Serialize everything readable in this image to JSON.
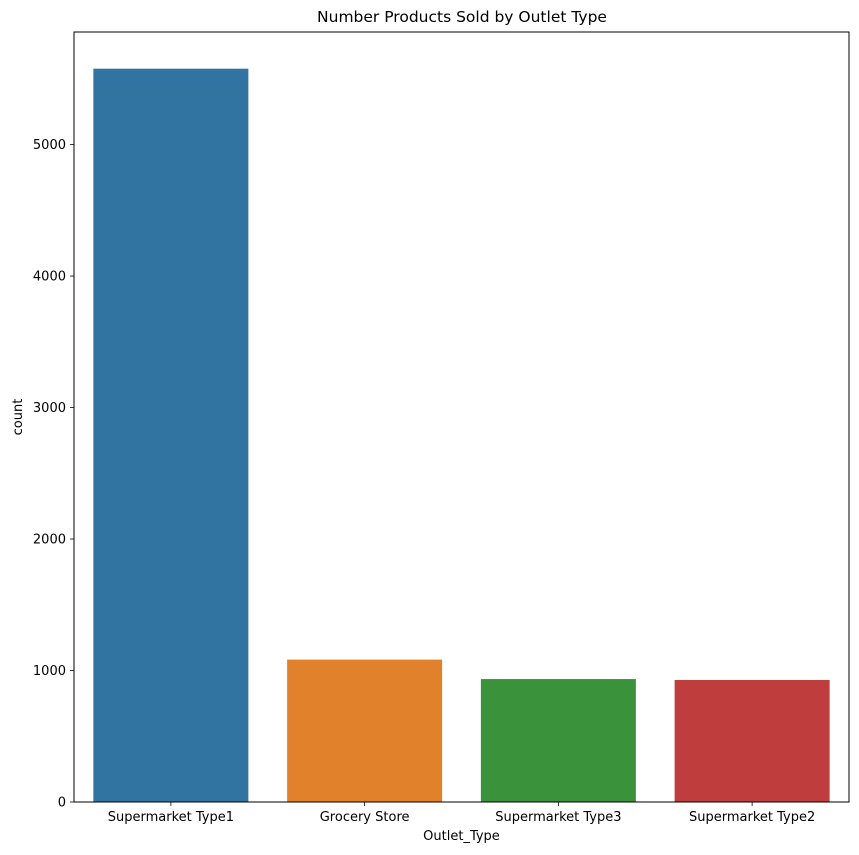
{
  "chart_data": {
    "type": "bar",
    "title": "Number Products Sold by Outlet Type",
    "xlabel": "Outlet_Type",
    "ylabel": "count",
    "categories": [
      "Supermarket Type1",
      "Grocery Store",
      "Supermarket Type3",
      "Supermarket Type2"
    ],
    "values": [
      5577,
      1083,
      935,
      928
    ],
    "colors": [
      "#3274a1",
      "#e1812c",
      "#3a923a",
      "#c03d3e"
    ],
    "ylim": [
      0,
      5856
    ],
    "yticks": [
      0,
      1000,
      2000,
      3000,
      4000,
      5000
    ],
    "grid": false,
    "legend": false
  }
}
